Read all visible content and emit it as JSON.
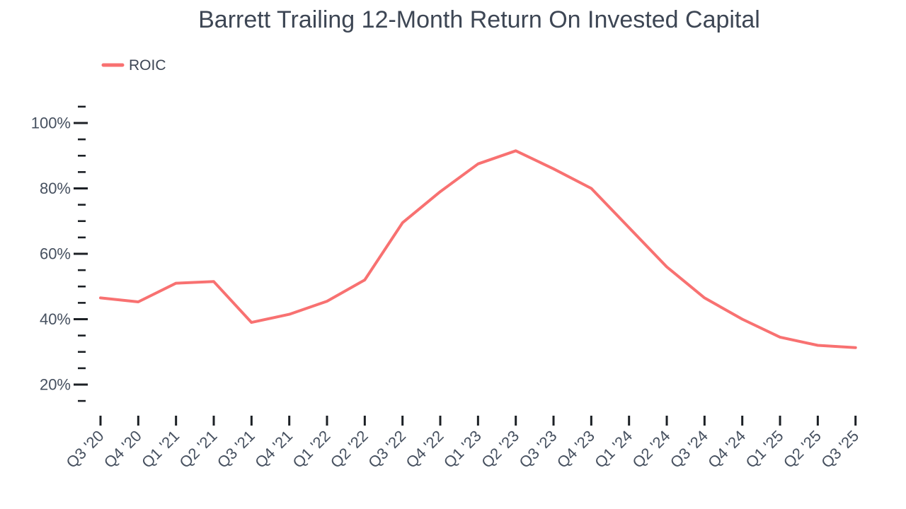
{
  "title": "Barrett Trailing 12-Month Return On Invested Capital",
  "legend": {
    "label": "ROIC",
    "position": "top-left"
  },
  "colors": {
    "line": "#f87171",
    "title_text": "#3d4654",
    "axis_text": "#46505f",
    "tick_mark": "#1c2025",
    "background": "#ffffff"
  },
  "chart_data": {
    "type": "line",
    "title": "Barrett Trailing 12-Month Return On Invested Capital",
    "categories": [
      "Q3 '20",
      "Q4 '20",
      "Q1 '21",
      "Q2 '21",
      "Q3 '21",
      "Q4 '21",
      "Q1 '22",
      "Q2 '22",
      "Q3 '22",
      "Q4 '22",
      "Q1 '23",
      "Q2 '23",
      "Q3 '23",
      "Q4 '23",
      "Q1 '24",
      "Q2 '24",
      "Q3 '24",
      "Q4 '24",
      "Q1 '25",
      "Q2 '25",
      "Q3 '25"
    ],
    "series": [
      {
        "name": "ROIC",
        "color": "#f87171",
        "values": [
          46.5,
          45.3,
          51,
          51.5,
          39,
          41.5,
          45.5,
          52,
          69.5,
          79,
          87.5,
          91.5,
          86,
          80,
          68,
          56,
          46.5,
          40,
          34.5,
          32,
          31.3
        ]
      }
    ],
    "unit": "%",
    "xlabel": "",
    "ylabel": "",
    "y_axis": {
      "major_ticks": [
        100,
        80,
        60,
        40,
        20
      ],
      "tick_labels": [
        "100%",
        "80%",
        "60%",
        "40%",
        "20%"
      ],
      "minor_tick_interval": 5,
      "minor_tick_min": 15,
      "minor_tick_max": 105
    },
    "legend_position": "top-left",
    "grid": false
  }
}
